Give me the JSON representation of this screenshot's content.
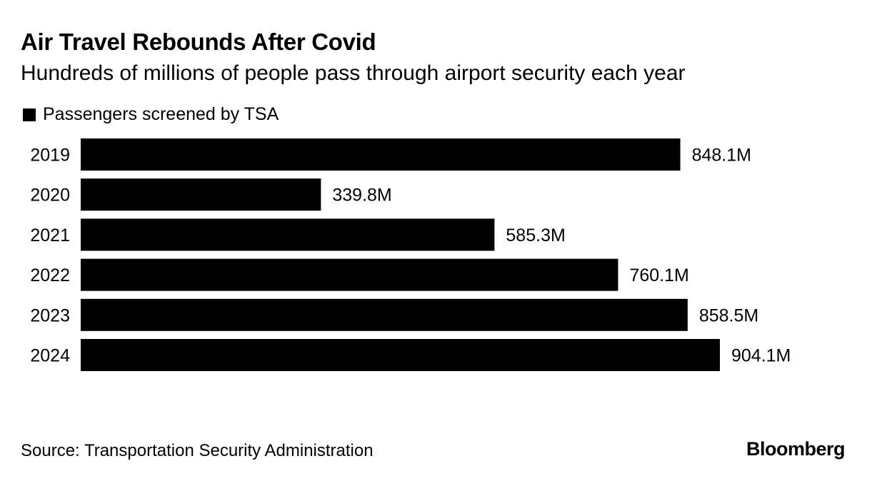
{
  "header": {
    "title": "Air Travel Rebounds After Covid",
    "subtitle": "Hundreds of millions of people pass through airport security each year"
  },
  "legend": {
    "label": "Passengers screened by TSA",
    "color": "#000000"
  },
  "chart_data": {
    "type": "bar",
    "orientation": "horizontal",
    "title": "Air Travel Rebounds After Covid",
    "subtitle": "Hundreds of millions of people pass through airport security each year",
    "categories": [
      "2019",
      "2020",
      "2021",
      "2022",
      "2023",
      "2024"
    ],
    "series": [
      {
        "name": "Passengers screened by TSA",
        "values": [
          848.1,
          339.8,
          585.3,
          760.1,
          858.5,
          904.1
        ],
        "labels": [
          "848.1M",
          "339.8M",
          "585.3M",
          "760.1M",
          "858.5M",
          "904.1M"
        ],
        "unit": "millions",
        "color": "#000000"
      }
    ],
    "xlabel": "",
    "ylabel": "",
    "xlim": [
      0,
      904.1
    ],
    "grid": false,
    "legend_position": "top-left"
  },
  "footer": {
    "source": "Source: Transportation Security Administration",
    "brand": "Bloomberg"
  }
}
